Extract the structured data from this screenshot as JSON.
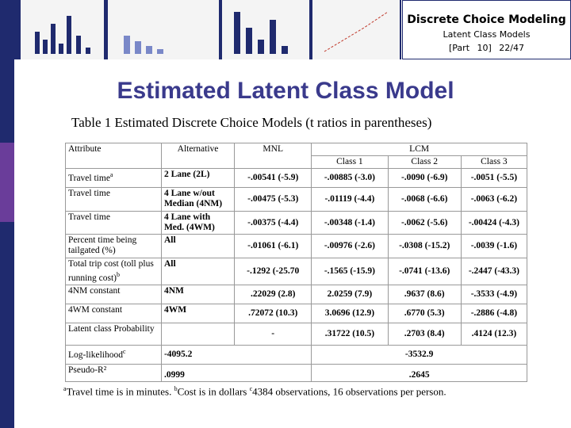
{
  "header": {
    "title": "Discrete Choice Modeling",
    "subtitle": "Latent Class Models",
    "part": "[Part 10]",
    "page": "22/47"
  },
  "slide_title": "Estimated Latent Class Model",
  "table": {
    "caption": "Table 1 Estimated Discrete Choice Models (t ratios in parentheses)",
    "columns": [
      "Attribute",
      "Alternative",
      "MNL",
      "LCM"
    ],
    "subcolumns": [
      "Class 1",
      "Class 2",
      "Class 3"
    ],
    "rows": [
      {
        "attribute": "Travel time",
        "sup": "a",
        "alternative": "2 Lane (2L)",
        "mnl": "-.00541 (-5.9)",
        "lcm": [
          "-.00885 (-3.0)",
          "-.0090 (-6.9)",
          "-.0051 (-5.5)"
        ]
      },
      {
        "attribute": "Travel time",
        "alternative": "4 Lane w/out Median (4NM)",
        "mnl": "-.00475 (-5.3)",
        "lcm": [
          "-.01119 (-4.4)",
          "-.0068 (-6.6)",
          "-.0063 (-6.2)"
        ]
      },
      {
        "attribute": "Travel time",
        "alternative": "4 Lane with Med. (4WM)",
        "mnl": "-.00375 (-4.4)",
        "lcm": [
          "-.00348 (-1.4)",
          "-.0062 (-5.6)",
          "-.00424 (-4.3)"
        ]
      },
      {
        "attribute": "Percent time being tailgated (%)",
        "alternative": "All",
        "mnl": "-.01061 (-6.1)",
        "lcm": [
          "-.00976 (-2.6)",
          "-.0308 (-15.2)",
          "-.0039 (-1.6)"
        ]
      },
      {
        "attribute": "Total trip cost (toll plus running cost)",
        "sup": "b",
        "alternative": "All",
        "mnl": "-.1292 (-25.70",
        "lcm": [
          "-.1565 (-15.9)",
          "-.0741 (-13.6)",
          "-.2447 (-43.3)"
        ]
      },
      {
        "attribute": "4NM constant",
        "alternative": "4NM",
        "mnl": ".22029 (2.8)",
        "lcm": [
          "2.0259 (7.9)",
          ".9637 (8.6)",
          "-.3533 (-4.9)"
        ]
      },
      {
        "attribute": "4WM constant",
        "alternative": "4WM",
        "mnl": ".72072 (10.3)",
        "lcm": [
          "3.0696 (12.9)",
          ".6770 (5.3)",
          "-.2886 (-4.8)"
        ]
      },
      {
        "attribute": "Latent class Probability",
        "mnl": "-",
        "lcm": [
          ".31722 (10.5)",
          ".2703 (8.4)",
          ".4124 (12.3)"
        ]
      }
    ],
    "log_likelihood": {
      "label": "Log-likelihood",
      "sup": "c",
      "mnl": "-4095.2",
      "lcm": "-3532.9"
    },
    "pseudo_r2": {
      "label": "Pseudo-R²",
      "mnl": ".0999",
      "lcm": ".2645"
    }
  },
  "footnote": [
    {
      "sup": "a",
      "text": "Travel time is in minutes. "
    },
    {
      "sup": "b",
      "text": "Cost is in dollars "
    },
    {
      "sup": "c",
      "text": "4384 observations, 16 observations per person."
    }
  ]
}
